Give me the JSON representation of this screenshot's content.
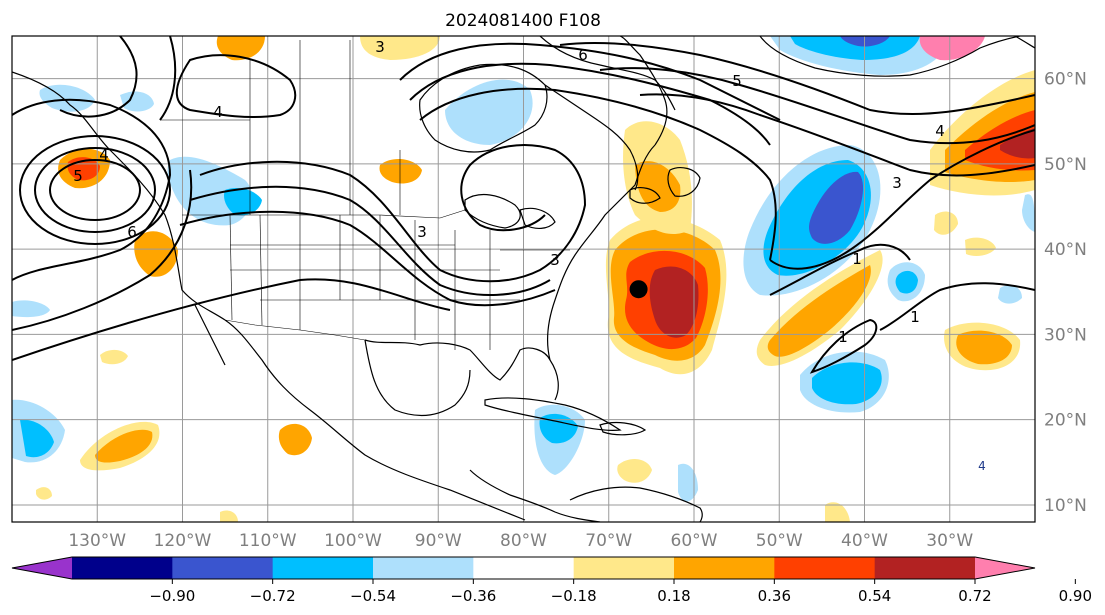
{
  "title": "2024081400 F108",
  "map": {
    "lon_range": [
      -140,
      -20
    ],
    "lat_range": [
      8,
      65
    ],
    "lat_ticks": [
      {
        "value": 60,
        "label": "60°N"
      },
      {
        "value": 50,
        "label": "50°N"
      },
      {
        "value": 40,
        "label": "40°N"
      },
      {
        "value": 30,
        "label": "30°N"
      },
      {
        "value": 20,
        "label": "20°N"
      },
      {
        "value": 10,
        "label": "10°N"
      }
    ],
    "lon_ticks": [
      {
        "value": -130,
        "label": "130°W"
      },
      {
        "value": -120,
        "label": "120°W"
      },
      {
        "value": -110,
        "label": "110°W"
      },
      {
        "value": -100,
        "label": "100°W"
      },
      {
        "value": -90,
        "label": "90°W"
      },
      {
        "value": -80,
        "label": "80°W"
      },
      {
        "value": -70,
        "label": "70°W"
      },
      {
        "value": -60,
        "label": "60°W"
      },
      {
        "value": -50,
        "label": "50°W"
      },
      {
        "value": -40,
        "label": "40°W"
      },
      {
        "value": -30,
        "label": "30°W"
      }
    ],
    "storm_marker": {
      "lon": -66.5,
      "lat": 35.3
    },
    "contour_labels": [
      "3",
      "4",
      "5",
      "6",
      "1"
    ]
  },
  "colorbar": {
    "colors": [
      "#9933cc",
      "#00008b",
      "#3a55cf",
      "#00bfff",
      "#aee0fc",
      "#ffffff",
      "#ffe88a",
      "#ffa500",
      "#ff4000",
      "#b22222",
      "#ff7fae"
    ],
    "labels": [
      "−0.90",
      "−0.72",
      "−0.54",
      "−0.36",
      "−0.18",
      "0.18",
      "0.36",
      "0.54",
      "0.72",
      "0.90"
    ]
  }
}
